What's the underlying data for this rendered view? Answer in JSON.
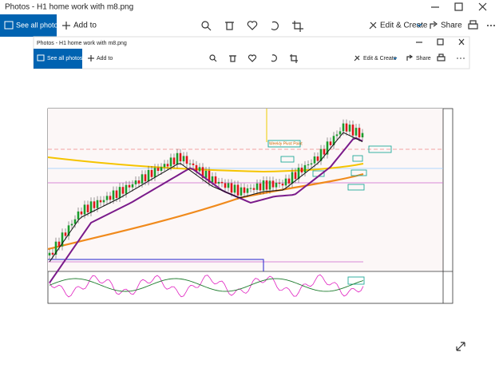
{
  "outer": {
    "title": "Photos - H1 home work with m8.png",
    "see_all": "See all photos",
    "add_to": "Add to",
    "edit_create": "Edit & Create",
    "share": "Share"
  },
  "inner": {
    "title": "Photos - H1 home work with m8.png",
    "see_all": "See all photos",
    "add_to": "Add to",
    "edit_create": "Edit & Create",
    "share": "Share"
  },
  "chart_image": {
    "annotation": "Weekly Pivot Point"
  }
}
